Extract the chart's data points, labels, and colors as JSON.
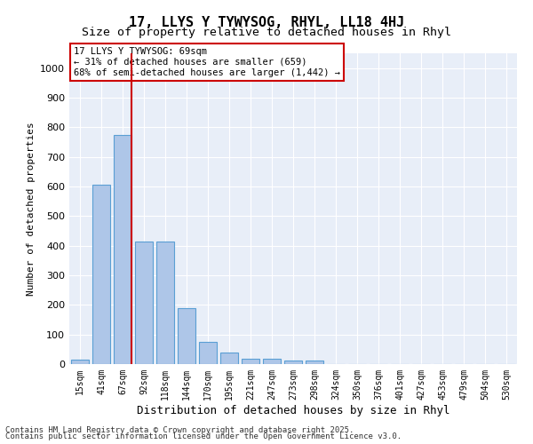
{
  "title": "17, LLYS Y TYWYSOG, RHYL, LL18 4HJ",
  "subtitle": "Size of property relative to detached houses in Rhyl",
  "xlabel": "Distribution of detached houses by size in Rhyl",
  "ylabel": "Number of detached properties",
  "categories": [
    "15sqm",
    "41sqm",
    "67sqm",
    "92sqm",
    "118sqm",
    "144sqm",
    "170sqm",
    "195sqm",
    "221sqm",
    "247sqm",
    "273sqm",
    "298sqm",
    "324sqm",
    "350sqm",
    "376sqm",
    "401sqm",
    "427sqm",
    "453sqm",
    "479sqm",
    "504sqm",
    "530sqm"
  ],
  "values": [
    15,
    605,
    775,
    415,
    415,
    190,
    75,
    40,
    18,
    18,
    12,
    12,
    0,
    0,
    0,
    0,
    0,
    0,
    0,
    0,
    0
  ],
  "bar_color": "#aec6e8",
  "bar_edge_color": "#5a9fd4",
  "vline_x": 2,
  "vline_color": "#cc0000",
  "vline_label": "69sqm",
  "annotation_title": "17 LLYS Y TYWYSOG: 69sqm",
  "annotation_line1": "← 31% of detached houses are smaller (659)",
  "annotation_line2": "68% of semi-detached houses are larger (1,442) →",
  "annotation_box_color": "#cc0000",
  "ylim": [
    0,
    1050
  ],
  "yticks": [
    0,
    100,
    200,
    300,
    400,
    500,
    600,
    700,
    800,
    900,
    1000
  ],
  "background_color": "#e8eef8",
  "footer_line1": "Contains HM Land Registry data © Crown copyright and database right 2025.",
  "footer_line2": "Contains public sector information licensed under the Open Government Licence v3.0."
}
